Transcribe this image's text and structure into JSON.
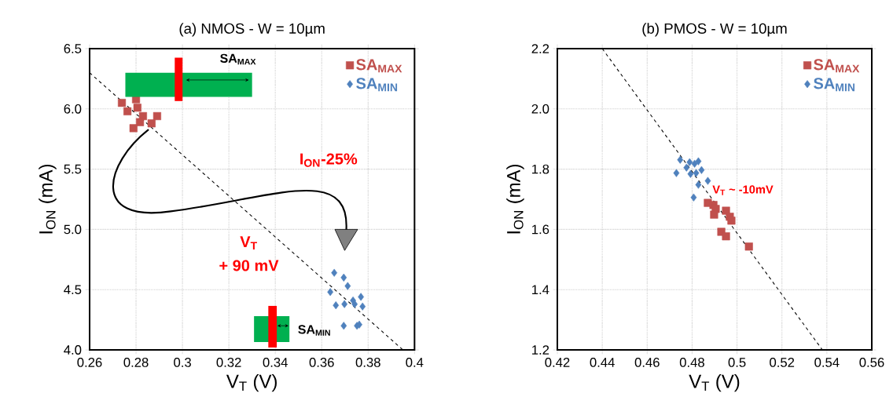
{
  "chart_data": [
    {
      "type": "scatter",
      "title": "(a) NMOS - W = 10µm",
      "xlabel": "V$_{T}$ (V)",
      "ylabel": "I$_{ON}$  (mA)",
      "xlim": [
        0.26,
        0.4
      ],
      "ylim": [
        4.0,
        6.5
      ],
      "xticks": [
        0.26,
        0.28,
        0.3,
        0.32,
        0.34,
        0.36,
        0.38,
        0.4
      ],
      "yticks": [
        {
          "value": 4,
          "label": "4.0"
        },
        4.5,
        {
          "value": 5,
          "label": "5.0"
        },
        5.5,
        {
          "value": 6,
          "label": "6.0"
        },
        6.5
      ],
      "grid": true,
      "legend": "top right",
      "series": [
        {
          "name": "SA$_{MAX}$",
          "color": "#c0504d",
          "marker": "square",
          "x": [
            0.2739,
            0.28,
            0.2806,
            0.2763,
            0.283,
            0.2817,
            0.2891,
            0.2867,
            0.2789
          ],
          "values": [
            6.05,
            6.08,
            6.01,
            5.98,
            5.94,
            5.89,
            5.94,
            5.88,
            5.84
          ]
        },
        {
          "name": "SA$_{MIN}$",
          "color": "#4f81bd",
          "marker": "diamond",
          "x": [
            0.3654,
            0.3695,
            0.3712,
            0.3637,
            0.3661,
            0.3698,
            0.3735,
            0.3769,
            0.3742,
            0.3776,
            0.3695,
            0.3752,
            0.3762
          ],
          "values": [
            4.64,
            4.6,
            4.53,
            4.48,
            4.37,
            4.38,
            4.41,
            4.44,
            4.38,
            4.36,
            4.2,
            4.2,
            4.21
          ]
        },
        {
          "type": "line",
          "color": "#000000",
          "line_style": "dashed",
          "marker": "none",
          "x": [
            0.26,
            0.395
          ],
          "values": [
            6.3,
            4.0
          ]
        }
      ],
      "annotations": [
        "SA$_{MAX}$",
        "SA$_{MIN}$",
        "I$_{ON}$-25%",
        "V$_{T}$",
        "+ 90 mV"
      ]
    },
    {
      "type": "scatter",
      "title": "(b) PMOS - W = 10µm",
      "xlabel": "V$_{T}$ (V)",
      "ylabel": "I$_{ON}$  (mA)",
      "xlim": [
        0.42,
        0.56
      ],
      "ylim": [
        1.2,
        2.2
      ],
      "xticks": [
        0.42,
        0.44,
        0.46,
        0.48,
        0.5,
        0.52,
        0.54,
        0.56
      ],
      "yticks": [
        1.2,
        1.4,
        1.6,
        1.8,
        {
          "value": 2,
          "label": "2.0"
        },
        2.2
      ],
      "grid": true,
      "legend": "top right",
      "series": [
        {
          "name": "SA$_{MAX}$",
          "color": "#c0504d",
          "marker": "square",
          "x": [
            0.487,
            0.4895,
            0.4905,
            0.4898,
            0.4951,
            0.4968,
            0.4975,
            0.493,
            0.4951,
            0.5053
          ],
          "values": [
            1.688,
            1.681,
            1.668,
            1.649,
            1.662,
            1.642,
            1.629,
            1.592,
            1.577,
            1.543
          ]
        },
        {
          "name": "SA$_{MIN}$",
          "color": "#4f81bd",
          "marker": "diamond",
          "x": [
            0.4747,
            0.4789,
            0.4811,
            0.4828,
            0.473,
            0.4775,
            0.4793,
            0.4818,
            0.4842,
            0.4828,
            0.487,
            0.4807
          ],
          "values": [
            1.831,
            1.823,
            1.818,
            1.826,
            1.787,
            1.805,
            1.784,
            1.787,
            1.797,
            1.748,
            1.761,
            1.706
          ]
        },
        {
          "type": "line",
          "color": "#000000",
          "line_style": "dashed",
          "marker": "none",
          "x": [
            0.44,
            0.538
          ],
          "values": [
            2.2,
            1.2
          ]
        }
      ],
      "annotations": [
        "V$_{T}$ ~ -10mV"
      ]
    }
  ]
}
